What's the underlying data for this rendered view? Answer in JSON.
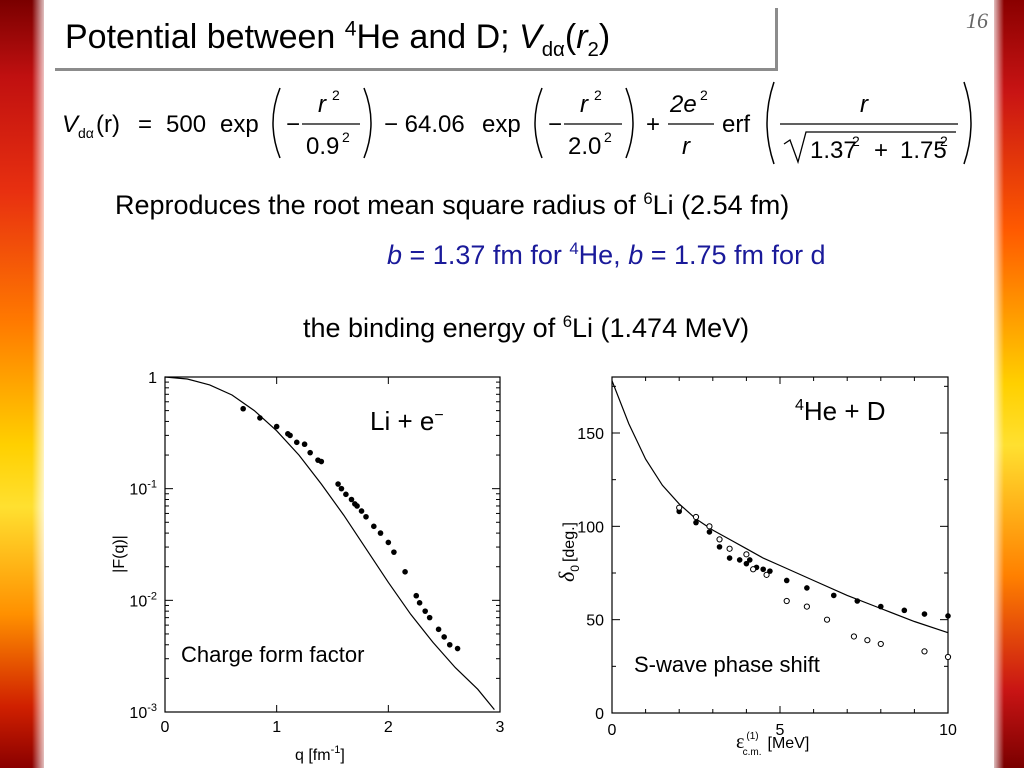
{
  "page_number": "16",
  "title": {
    "text": "Potential between ",
    "sup": "4",
    "he_d": "He and D; ",
    "v": "V",
    "sub": "dα",
    "paren": "(",
    "r": "r",
    "r_sub": "2",
    "close": ")"
  },
  "formula": {
    "lhs_v": "V",
    "lhs_sub": "dα",
    "lhs_arg": "(r)",
    "eq": "=",
    "coef1": "500",
    "exp1": "exp",
    "minus1": "−",
    "num1": "r",
    "num1_sup": "2",
    "den1": "0.9",
    "den1_sup": "2",
    "mid": "− 64.06",
    "exp2": "exp",
    "minus2": "−",
    "num2": "r",
    "num2_sup": "2",
    "den2": "2.0",
    "den2_sup": "2",
    "plus": "+",
    "num3": "2e",
    "num3_sup": "2",
    "den3": "r",
    "erf": "erf",
    "num4": "r",
    "den4_a": "1.37",
    "den4_a_sup": "2",
    "den4_plus": "+",
    "den4_b": "1.75",
    "den4_b_sup": "2"
  },
  "text_lines": {
    "line1_a": "Reproduces",
    "line1_b": " the root mean square radius of ",
    "line1_sup": "6",
    "line1_c": "Li (2.54 fm)",
    "line2_b1": "b",
    "line2_t1": " = 1.37 fm for ",
    "line2_sup": "4",
    "line2_t2": "He, ",
    "line2_b2": "b",
    "line2_t3": " = 1.75 fm for d",
    "line3_a": "the binding energy of ",
    "line3_sup": "6",
    "line3_b": "Li (1.474 MeV)"
  },
  "chart_data": [
    {
      "type": "scatter",
      "annotation": "Charge form factor",
      "corner_label": "Li + e",
      "corner_label_sup": "−",
      "xlabel": "q [fm",
      "xlabel_sup": "-1",
      "xlabel_end": "]",
      "ylabel": "|F(q)|",
      "xlim": [
        0,
        3
      ],
      "ylim": [
        0.001,
        1
      ],
      "yscale": "log",
      "x_ticks": [
        "0",
        "1",
        "2",
        "3"
      ],
      "y_ticks": [
        {
          "base": "1",
          "exp": ""
        },
        {
          "base": "10",
          "exp": "-1"
        },
        {
          "base": "10",
          "exp": "-2"
        },
        {
          "base": "10",
          "exp": "-3"
        }
      ],
      "series": [
        {
          "style": "line",
          "x": [
            0,
            0.2,
            0.4,
            0.6,
            0.8,
            1.0,
            1.2,
            1.4,
            1.6,
            1.8,
            2.0,
            2.2,
            2.4,
            2.6,
            2.8,
            2.95
          ],
          "y": [
            1.0,
            0.96,
            0.85,
            0.69,
            0.5,
            0.33,
            0.2,
            0.11,
            0.058,
            0.029,
            0.0145,
            0.0075,
            0.0042,
            0.0025,
            0.0016,
            0.00105
          ]
        },
        {
          "style": "filled-points",
          "x": [
            0.7,
            0.85,
            1.0,
            1.1,
            1.12,
            1.18,
            1.25,
            1.3,
            1.37,
            1.4,
            1.55,
            1.58,
            1.62,
            1.67,
            1.7,
            1.72,
            1.76,
            1.8,
            1.87,
            1.93,
            2.0,
            2.05,
            2.15,
            2.25,
            2.28,
            2.33,
            2.37,
            2.45,
            2.5,
            2.55,
            2.62
          ],
          "y": [
            0.52,
            0.43,
            0.36,
            0.31,
            0.3,
            0.26,
            0.25,
            0.21,
            0.18,
            0.175,
            0.11,
            0.1,
            0.089,
            0.08,
            0.073,
            0.07,
            0.063,
            0.056,
            0.046,
            0.04,
            0.033,
            0.027,
            0.018,
            0.011,
            0.0095,
            0.008,
            0.007,
            0.0055,
            0.0047,
            0.004,
            0.0037
          ]
        }
      ]
    },
    {
      "type": "scatter",
      "annotation": "S-wave phase shift",
      "corner_label_sup": "4",
      "corner_label": "He + D",
      "xlabel": "ε",
      "xlabel_sup": "(1)",
      "xlabel_sub": "c.m.",
      "xlabel_end": "[MeV]",
      "ylabel": "δ",
      "ylabel_sub": "0",
      "ylabel_end": "[deg.]",
      "xlim": [
        0,
        10
      ],
      "ylim": [
        0,
        180
      ],
      "x_ticks": [
        "0",
        "5",
        "10"
      ],
      "y_ticks": [
        "0",
        "50",
        "100",
        "150"
      ],
      "series": [
        {
          "style": "line",
          "x": [
            0,
            0.5,
            1.0,
            1.5,
            2.0,
            2.5,
            3.0,
            3.5,
            4.0,
            4.5,
            5.0,
            6.0,
            7.0,
            8.0,
            9.0,
            10.0
          ],
          "y": [
            178,
            155,
            136,
            122,
            112,
            104,
            98,
            93,
            88,
            83,
            79,
            71,
            63,
            56,
            49,
            43
          ]
        },
        {
          "style": "filled-points",
          "x": [
            2.0,
            2.5,
            2.9,
            3.2,
            3.5,
            3.8,
            4.0,
            4.1,
            4.3,
            4.5,
            4.7,
            5.2,
            5.8,
            6.6,
            7.3,
            8.0,
            8.7,
            9.3,
            10.0
          ],
          "y": [
            108,
            102,
            97,
            89,
            83,
            82,
            80,
            82,
            78,
            77,
            76,
            71,
            67,
            63,
            60,
            57,
            55,
            53,
            52
          ]
        },
        {
          "style": "open-points",
          "x": [
            2.0,
            2.5,
            2.9,
            3.2,
            3.5,
            4.0,
            4.2,
            4.6,
            5.2,
            5.8,
            6.4,
            7.2,
            7.6,
            8.0,
            9.3,
            10.0
          ],
          "y": [
            110,
            105,
            100,
            93,
            88,
            85,
            77,
            74,
            60,
            57,
            50,
            41,
            39,
            37,
            33,
            30
          ]
        }
      ]
    }
  ]
}
